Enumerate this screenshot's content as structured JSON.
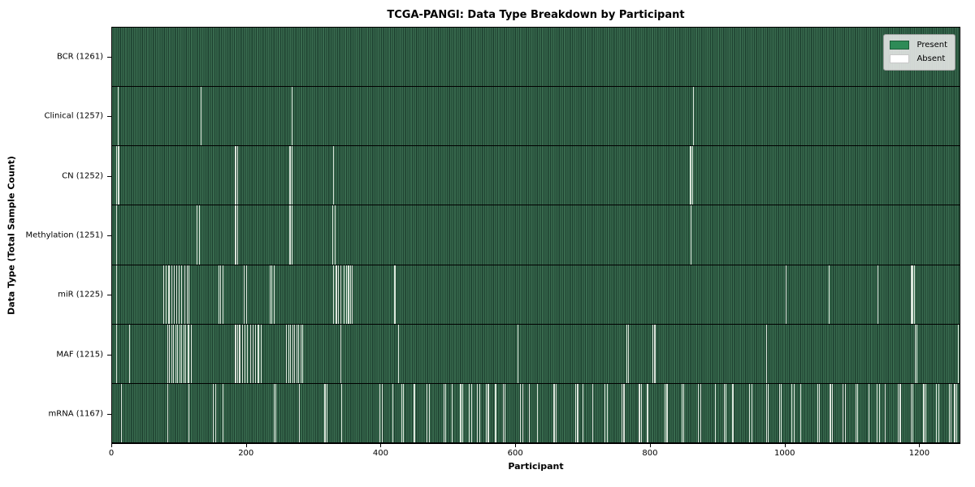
{
  "chart_data": {
    "type": "heatmap",
    "title": "TCGA-PANGI: Data Type Breakdown by Participant",
    "xlabel": "Participant",
    "ylabel": "Data Type (Total Sample Count)",
    "total_participants": 1261,
    "x_ticks": [
      0,
      200,
      400,
      600,
      800,
      1000,
      1200
    ],
    "legend": [
      {
        "label": "Present",
        "color": "#2e8b57"
      },
      {
        "label": "Absent",
        "color": "#ffffff"
      }
    ],
    "colors": {
      "present_light": "#386a4e",
      "present_dark": "#1e4130",
      "absent_line": "#dce6dc",
      "legend_present": "#2e8b57",
      "legend_absent": "#ffffff"
    },
    "rows": [
      {
        "label": "BCR",
        "count": 1261,
        "tick_label": "BCR (1261)",
        "absent": []
      },
      {
        "label": "Clinical",
        "count": 1257,
        "tick_label": "Clinical (1257)",
        "absent": [
          8,
          132,
          267,
          864
        ]
      },
      {
        "label": "CN",
        "count": 1252,
        "tick_label": "CN (1252)",
        "absent": [
          6,
          9,
          183,
          186,
          264,
          267,
          329,
          860,
          863
        ]
      },
      {
        "label": "Methylation",
        "count": 1251,
        "tick_label": "Methylation (1251)",
        "absent": [
          6,
          126,
          129,
          183,
          186,
          264,
          267,
          328,
          331,
          861
        ]
      },
      {
        "label": "miR",
        "count": 1225,
        "tick_label": "miR (1225)",
        "absent": [
          6,
          76,
          80,
          84,
          88,
          92,
          95,
          99,
          103,
          107,
          111,
          114,
          158,
          161,
          164,
          196,
          199,
          234,
          237,
          240,
          329,
          333,
          336,
          340,
          344,
          348,
          351,
          354,
          357,
          420,
          1002,
          1066,
          1139,
          1189,
          1191,
          1193
        ]
      },
      {
        "label": "MAF",
        "count": 1215,
        "tick_label": "MAF (1215)",
        "absent": [
          6,
          25,
          82,
          85,
          88,
          91,
          94,
          97,
          100,
          103,
          106,
          109,
          112,
          114,
          117,
          183,
          186,
          189,
          193,
          197,
          201,
          205,
          209,
          213,
          217,
          221,
          259,
          262,
          265,
          268,
          271,
          274,
          277,
          280,
          283,
          340,
          425,
          603,
          765,
          768,
          804,
          807,
          973,
          1194,
          1197,
          1258
        ]
      },
      {
        "label": "mRNA",
        "count": 1167,
        "tick_label": "mRNA (1167)",
        "absent": [
          13,
          82,
          114,
          150,
          153,
          164,
          240,
          243,
          278,
          316,
          319,
          341,
          398,
          401,
          417,
          430,
          433,
          449,
          468,
          471,
          493,
          496,
          505,
          518,
          521,
          531,
          534,
          543,
          546,
          556,
          559,
          570,
          581,
          584,
          607,
          610,
          620,
          632,
          657,
          660,
          689,
          692,
          700,
          714,
          733,
          736,
          758,
          761,
          784,
          787,
          796,
          822,
          825,
          847,
          850,
          872,
          875,
          897,
          910,
          913,
          923,
          948,
          951,
          973,
          976,
          992,
          995,
          1011,
          1014,
          1024,
          1049,
          1052,
          1068,
          1071,
          1087,
          1090,
          1106,
          1109,
          1125,
          1138,
          1141,
          1150,
          1169,
          1172,
          1188,
          1191,
          1207,
          1210,
          1226,
          1229,
          1245,
          1248,
          1253,
          1256
        ]
      }
    ]
  }
}
